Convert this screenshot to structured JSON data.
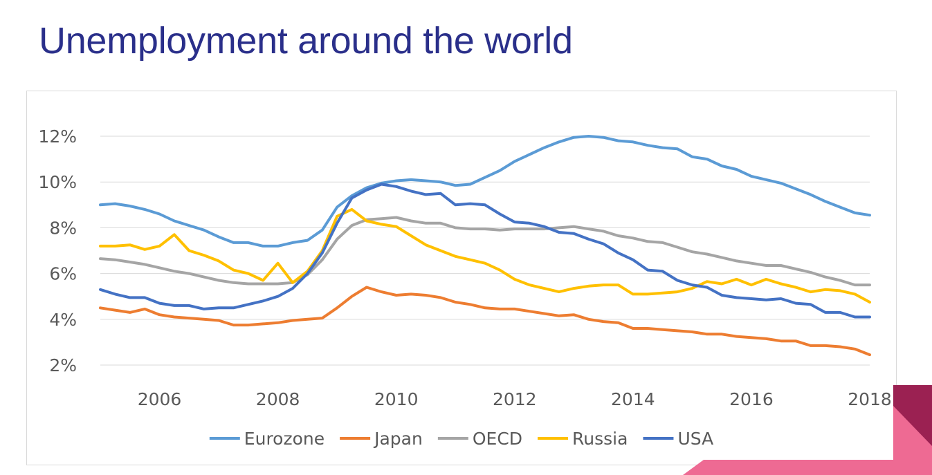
{
  "slide": {
    "title": "Unemployment around the world"
  },
  "colors": {
    "title": "#2a2f8a",
    "decor_dark": "#9b2152",
    "decor_light": "#ee6a93"
  },
  "chart_data": {
    "type": "line",
    "title": "",
    "xlabel": "",
    "ylabel": "",
    "xlim": [
      2005,
      2018
    ],
    "ylim": [
      2,
      12
    ],
    "y_ticks": [
      2,
      4,
      6,
      8,
      10,
      12
    ],
    "y_tick_labels": [
      "2%",
      "4%",
      "6%",
      "8%",
      "10%",
      "12%"
    ],
    "x_ticks": [
      2006,
      2008,
      2010,
      2012,
      2014,
      2016,
      2018
    ],
    "x_tick_labels": [
      "2006",
      "2008",
      "2010",
      "2012",
      "2014",
      "2016",
      "2018"
    ],
    "grid": "horizontal",
    "legend_position": "bottom",
    "x": [
      2005,
      2005.25,
      2005.5,
      2005.75,
      2006,
      2006.25,
      2006.5,
      2006.75,
      2007,
      2007.25,
      2007.5,
      2007.75,
      2008,
      2008.25,
      2008.5,
      2008.75,
      2009,
      2009.25,
      2009.5,
      2009.75,
      2010,
      2010.25,
      2010.5,
      2010.75,
      2011,
      2011.25,
      2011.5,
      2011.75,
      2012,
      2012.25,
      2012.5,
      2012.75,
      2013,
      2013.25,
      2013.5,
      2013.75,
      2014,
      2014.25,
      2014.5,
      2014.75,
      2015,
      2015.25,
      2015.5,
      2015.75,
      2016,
      2016.25,
      2016.5,
      2016.75,
      2017,
      2017.25,
      2017.5,
      2017.75,
      2018
    ],
    "series": [
      {
        "name": "Eurozone",
        "color": "#5b9bd5",
        "values": [
          9.0,
          9.05,
          8.95,
          8.8,
          8.6,
          8.3,
          8.1,
          7.9,
          7.6,
          7.35,
          7.35,
          7.2,
          7.2,
          7.35,
          7.45,
          7.9,
          8.9,
          9.4,
          9.75,
          9.95,
          10.05,
          10.1,
          10.05,
          10.0,
          9.85,
          9.9,
          10.2,
          10.5,
          10.9,
          11.2,
          11.5,
          11.75,
          11.95,
          12.0,
          11.95,
          11.8,
          11.75,
          11.6,
          11.5,
          11.45,
          11.1,
          11.0,
          10.7,
          10.55,
          10.25,
          10.1,
          9.95,
          9.7,
          9.45,
          9.15,
          8.9,
          8.65,
          8.55
        ]
      },
      {
        "name": "Japan",
        "color": "#ed7d31",
        "values": [
          4.5,
          4.4,
          4.3,
          4.45,
          4.2,
          4.1,
          4.05,
          4.0,
          3.95,
          3.75,
          3.75,
          3.8,
          3.85,
          3.95,
          4.0,
          4.05,
          4.5,
          5.0,
          5.4,
          5.2,
          5.05,
          5.1,
          5.05,
          4.95,
          4.75,
          4.65,
          4.5,
          4.45,
          4.45,
          4.35,
          4.25,
          4.15,
          4.2,
          4.0,
          3.9,
          3.85,
          3.6,
          3.6,
          3.55,
          3.5,
          3.45,
          3.35,
          3.35,
          3.25,
          3.2,
          3.15,
          3.05,
          3.05,
          2.85,
          2.85,
          2.8,
          2.7,
          2.45
        ]
      },
      {
        "name": "OECD",
        "color": "#a5a5a5",
        "values": [
          6.65,
          6.6,
          6.5,
          6.4,
          6.25,
          6.1,
          6.0,
          5.85,
          5.7,
          5.6,
          5.55,
          5.55,
          5.55,
          5.6,
          5.95,
          6.6,
          7.5,
          8.1,
          8.35,
          8.4,
          8.45,
          8.3,
          8.2,
          8.2,
          8.0,
          7.95,
          7.95,
          7.9,
          7.95,
          7.95,
          7.95,
          8.0,
          8.05,
          7.95,
          7.85,
          7.65,
          7.55,
          7.4,
          7.35,
          7.15,
          6.95,
          6.85,
          6.7,
          6.55,
          6.45,
          6.35,
          6.35,
          6.2,
          6.05,
          5.85,
          5.7,
          5.5,
          5.5
        ]
      },
      {
        "name": "Russia",
        "color": "#ffc000",
        "values": [
          7.2,
          7.2,
          7.25,
          7.05,
          7.2,
          7.7,
          7.0,
          6.8,
          6.55,
          6.15,
          6.0,
          5.7,
          6.45,
          5.6,
          6.1,
          7.0,
          8.5,
          8.8,
          8.3,
          8.15,
          8.05,
          7.65,
          7.25,
          7.0,
          6.75,
          6.6,
          6.45,
          6.15,
          5.75,
          5.5,
          5.35,
          5.2,
          5.35,
          5.45,
          5.5,
          5.5,
          5.1,
          5.1,
          5.15,
          5.2,
          5.35,
          5.65,
          5.55,
          5.75,
          5.5,
          5.75,
          5.55,
          5.4,
          5.2,
          5.3,
          5.25,
          5.1,
          4.75
        ]
      },
      {
        "name": "USA",
        "color": "#4472c4",
        "values": [
          5.3,
          5.1,
          4.95,
          4.95,
          4.7,
          4.6,
          4.6,
          4.45,
          4.5,
          4.5,
          4.65,
          4.8,
          5.0,
          5.35,
          6.0,
          6.9,
          8.2,
          9.3,
          9.65,
          9.9,
          9.8,
          9.6,
          9.45,
          9.5,
          9.0,
          9.05,
          9.0,
          8.6,
          8.25,
          8.2,
          8.05,
          7.8,
          7.75,
          7.5,
          7.3,
          6.9,
          6.6,
          6.15,
          6.1,
          5.7,
          5.5,
          5.4,
          5.05,
          4.95,
          4.9,
          4.85,
          4.9,
          4.7,
          4.65,
          4.3,
          4.3,
          4.1,
          4.1
        ]
      }
    ]
  }
}
